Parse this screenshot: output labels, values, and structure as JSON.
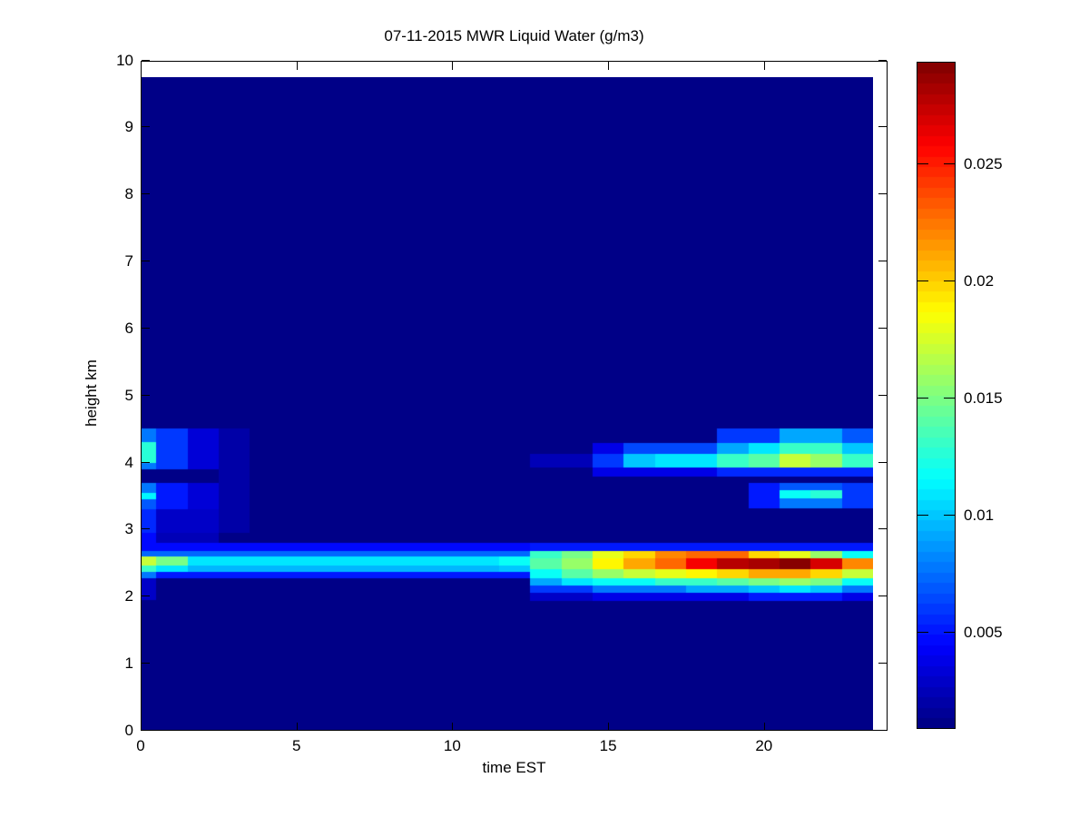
{
  "figure": {
    "background_color": "#ffffff",
    "axis_color": "#000000"
  },
  "chart_data": {
    "type": "heatmap",
    "title": "07-11-2015 MWR Liquid Water (g/m3)",
    "xlabel": "time EST",
    "ylabel": "height km",
    "xlim": [
      0,
      24
    ],
    "ylim": [
      0,
      10
    ],
    "data_extent": {
      "t": [
        0,
        23.5
      ],
      "h": [
        0,
        9.75
      ]
    },
    "x_ticks": [
      0,
      5,
      10,
      15,
      20
    ],
    "y_ticks": [
      0,
      1,
      2,
      3,
      4,
      5,
      6,
      7,
      8,
      9,
      10
    ],
    "grid": false,
    "colormap": "jet",
    "colorbar": {
      "position": "right",
      "vmin": 0.0009,
      "vmax": 0.0294,
      "tick_values": [
        0.005,
        0.01,
        0.015,
        0.02,
        0.025
      ],
      "tick_labels": [
        "0.005",
        "0.01",
        "0.015",
        "0.02",
        "0.025"
      ]
    },
    "background_value": 0.001,
    "cells_format": "[t_start_hr, t_end_hr, height_bottom_km, height_top_km, liquid_water_g_per_m3]",
    "cells": [
      [
        0,
        0.5,
        4.31,
        4.51,
        0.008
      ],
      [
        0,
        0.5,
        4.0,
        4.31,
        0.0125
      ],
      [
        0,
        0.5,
        3.9,
        4.0,
        0.008
      ],
      [
        0.5,
        1.5,
        3.9,
        4.51,
        0.006
      ],
      [
        1.5,
        2.5,
        3.9,
        4.51,
        0.0035
      ],
      [
        0,
        0.5,
        3.55,
        3.7,
        0.008
      ],
      [
        0,
        0.5,
        3.45,
        3.55,
        0.0115
      ],
      [
        0,
        0.5,
        3.3,
        3.45,
        0.007
      ],
      [
        0.5,
        1.5,
        3.3,
        3.7,
        0.005
      ],
      [
        1.5,
        2.5,
        3.3,
        3.7,
        0.0035
      ],
      [
        0,
        0.5,
        2.95,
        3.3,
        0.0055
      ],
      [
        0.5,
        2.5,
        2.95,
        3.3,
        0.003
      ],
      [
        0,
        0.5,
        2.8,
        2.95,
        0.0045
      ],
      [
        0.5,
        2.5,
        2.8,
        2.95,
        0.0025
      ],
      [
        2.5,
        3.5,
        2.95,
        4.51,
        0.002
      ],
      [
        0,
        0.5,
        1.95,
        2.28,
        0.003
      ],
      [
        0,
        12.5,
        2.68,
        2.8,
        0.0045
      ],
      [
        0,
        12.5,
        2.6,
        2.68,
        0.0075
      ],
      [
        0,
        0.5,
        2.47,
        2.6,
        0.017
      ],
      [
        0.5,
        1.5,
        2.47,
        2.6,
        0.015
      ],
      [
        1.5,
        11.5,
        2.47,
        2.6,
        0.011
      ],
      [
        11.5,
        12.5,
        2.47,
        2.6,
        0.012
      ],
      [
        0,
        0.5,
        2.37,
        2.47,
        0.013
      ],
      [
        0.5,
        1.5,
        2.37,
        2.47,
        0.011
      ],
      [
        1.5,
        11.5,
        2.37,
        2.47,
        0.0095
      ],
      [
        11.5,
        12.5,
        2.37,
        2.47,
        0.01
      ],
      [
        0,
        0.5,
        2.28,
        2.37,
        0.008
      ],
      [
        0.5,
        12.5,
        2.28,
        2.37,
        0.005
      ],
      [
        12.5,
        23.5,
        2.68,
        2.8,
        0.005
      ],
      [
        12.5,
        13.5,
        2.57,
        2.68,
        0.013
      ],
      [
        13.5,
        14.5,
        2.57,
        2.68,
        0.015
      ],
      [
        14.5,
        15.5,
        2.57,
        2.68,
        0.018
      ],
      [
        15.5,
        16.5,
        2.57,
        2.68,
        0.02
      ],
      [
        16.5,
        17.5,
        2.57,
        2.68,
        0.022
      ],
      [
        17.5,
        19.5,
        2.57,
        2.68,
        0.023
      ],
      [
        19.5,
        20.5,
        2.57,
        2.68,
        0.02
      ],
      [
        20.5,
        21.5,
        2.57,
        2.68,
        0.018
      ],
      [
        21.5,
        22.5,
        2.57,
        2.68,
        0.016
      ],
      [
        22.5,
        23.5,
        2.57,
        2.68,
        0.012
      ],
      [
        12.5,
        13.5,
        2.41,
        2.57,
        0.014
      ],
      [
        13.5,
        14.5,
        2.41,
        2.57,
        0.016
      ],
      [
        14.5,
        15.5,
        2.41,
        2.57,
        0.019
      ],
      [
        15.5,
        16.5,
        2.41,
        2.57,
        0.021
      ],
      [
        16.5,
        17.5,
        2.41,
        2.57,
        0.023
      ],
      [
        17.5,
        18.5,
        2.41,
        2.57,
        0.026
      ],
      [
        18.5,
        19.5,
        2.41,
        2.57,
        0.028
      ],
      [
        19.5,
        20.5,
        2.41,
        2.57,
        0.0285
      ],
      [
        20.5,
        21.5,
        2.41,
        2.57,
        0.0293
      ],
      [
        21.5,
        22.5,
        2.41,
        2.57,
        0.027
      ],
      [
        22.5,
        23.5,
        2.41,
        2.57,
        0.022
      ],
      [
        12.5,
        13.5,
        2.28,
        2.41,
        0.012
      ],
      [
        13.5,
        14.5,
        2.28,
        2.41,
        0.014
      ],
      [
        14.5,
        15.5,
        2.28,
        2.41,
        0.016
      ],
      [
        15.5,
        16.5,
        2.28,
        2.41,
        0.017
      ],
      [
        16.5,
        17.5,
        2.28,
        2.41,
        0.018
      ],
      [
        17.5,
        18.5,
        2.28,
        2.41,
        0.019
      ],
      [
        18.5,
        19.5,
        2.28,
        2.41,
        0.02
      ],
      [
        19.5,
        21.5,
        2.28,
        2.41,
        0.021
      ],
      [
        21.5,
        22.5,
        2.28,
        2.41,
        0.02
      ],
      [
        22.5,
        23.5,
        2.28,
        2.41,
        0.017
      ],
      [
        12.5,
        13.5,
        2.17,
        2.28,
        0.009
      ],
      [
        13.5,
        14.5,
        2.17,
        2.28,
        0.011
      ],
      [
        14.5,
        16.5,
        2.17,
        2.28,
        0.012
      ],
      [
        16.5,
        18.5,
        2.17,
        2.28,
        0.013
      ],
      [
        18.5,
        19.5,
        2.17,
        2.28,
        0.014
      ],
      [
        19.5,
        20.5,
        2.17,
        2.28,
        0.015
      ],
      [
        20.5,
        21.5,
        2.17,
        2.28,
        0.016
      ],
      [
        21.5,
        22.5,
        2.17,
        2.28,
        0.015
      ],
      [
        22.5,
        23.5,
        2.17,
        2.28,
        0.012
      ],
      [
        12.5,
        14.5,
        2.06,
        2.17,
        0.006
      ],
      [
        14.5,
        17.5,
        2.06,
        2.17,
        0.008
      ],
      [
        17.5,
        19.5,
        2.06,
        2.17,
        0.009
      ],
      [
        19.5,
        20.5,
        2.06,
        2.17,
        0.01
      ],
      [
        20.5,
        21.5,
        2.06,
        2.17,
        0.011
      ],
      [
        21.5,
        22.5,
        2.06,
        2.17,
        0.01
      ],
      [
        22.5,
        23.5,
        2.06,
        2.17,
        0.008
      ],
      [
        12.5,
        14.5,
        1.94,
        2.06,
        0.003
      ],
      [
        14.5,
        19.5,
        1.94,
        2.06,
        0.004
      ],
      [
        19.5,
        22.5,
        1.94,
        2.06,
        0.005
      ],
      [
        22.5,
        23.5,
        1.94,
        2.06,
        0.004
      ],
      [
        12.5,
        14.5,
        3.93,
        4.13,
        0.0025
      ],
      [
        14.5,
        15.5,
        3.93,
        4.13,
        0.006
      ],
      [
        15.5,
        16.5,
        3.93,
        4.13,
        0.01
      ],
      [
        16.5,
        18.5,
        3.93,
        4.13,
        0.011
      ],
      [
        18.5,
        19.5,
        3.93,
        4.13,
        0.013
      ],
      [
        19.5,
        20.5,
        3.93,
        4.13,
        0.014
      ],
      [
        20.5,
        21.5,
        3.93,
        4.13,
        0.017
      ],
      [
        21.5,
        22.5,
        3.93,
        4.13,
        0.016
      ],
      [
        22.5,
        23.5,
        3.93,
        4.13,
        0.013
      ],
      [
        14.5,
        15.5,
        4.13,
        4.29,
        0.004
      ],
      [
        15.5,
        18.5,
        4.13,
        4.29,
        0.0065
      ],
      [
        18.5,
        19.5,
        4.13,
        4.29,
        0.009
      ],
      [
        19.5,
        20.5,
        4.13,
        4.29,
        0.011
      ],
      [
        20.5,
        22.5,
        4.13,
        4.29,
        0.013
      ],
      [
        22.5,
        23.5,
        4.13,
        4.29,
        0.01
      ],
      [
        18.5,
        20.5,
        4.29,
        4.51,
        0.006
      ],
      [
        20.5,
        22.5,
        4.29,
        4.51,
        0.009
      ],
      [
        22.5,
        23.5,
        4.29,
        4.51,
        0.007
      ],
      [
        14.5,
        18.5,
        3.79,
        3.93,
        0.004
      ],
      [
        18.5,
        23.5,
        3.79,
        3.93,
        0.0055
      ],
      [
        19.5,
        20.5,
        3.32,
        3.7,
        0.005
      ],
      [
        20.5,
        22.5,
        3.59,
        3.7,
        0.007
      ],
      [
        20.5,
        21.5,
        3.46,
        3.59,
        0.012
      ],
      [
        21.5,
        22.5,
        3.46,
        3.59,
        0.0125
      ],
      [
        20.5,
        22.5,
        3.32,
        3.46,
        0.008
      ],
      [
        22.5,
        23.5,
        3.32,
        3.7,
        0.006
      ]
    ]
  }
}
